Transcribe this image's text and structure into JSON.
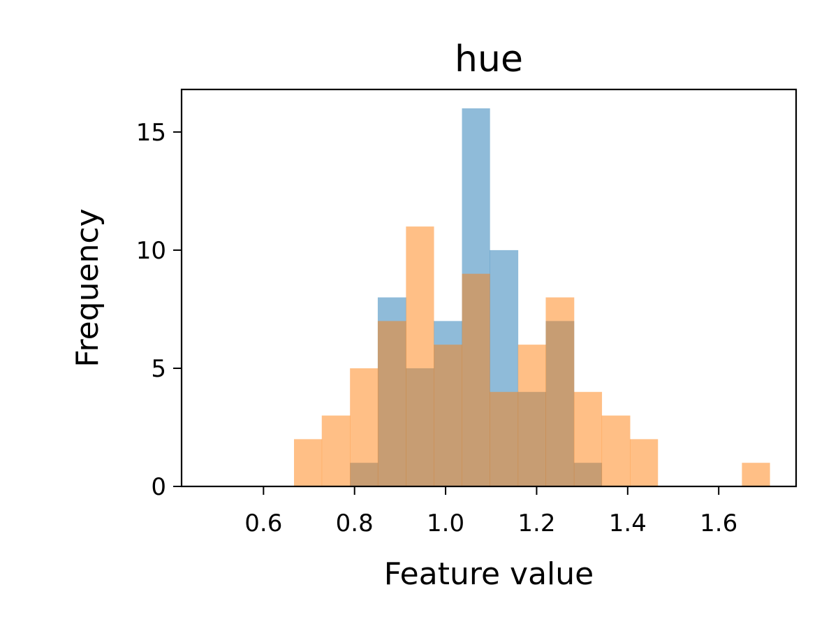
{
  "chart_data": {
    "type": "bar",
    "title": "hue",
    "xlabel": "Feature value",
    "ylabel": "Frequency",
    "xlim": [
      0.42,
      1.77
    ],
    "ylim": [
      0,
      16.8
    ],
    "xticks": [
      0.6,
      0.8,
      1.0,
      1.2,
      1.4,
      1.6
    ],
    "xtick_labels": [
      "0.6",
      "0.8",
      "1.0",
      "1.2",
      "1.4",
      "1.6"
    ],
    "yticks": [
      0,
      5,
      10,
      15
    ],
    "ytick_labels": [
      "0",
      "5",
      "10",
      "15"
    ],
    "grid": false,
    "legend": "none",
    "series": [
      {
        "color": "#1f77b4",
        "opacity": 0.5,
        "bins": [
          {
            "x0": 0.79,
            "x1": 0.851,
            "count": 1
          },
          {
            "x0": 0.851,
            "x1": 0.913,
            "count": 8
          },
          {
            "x0": 0.913,
            "x1": 0.974,
            "count": 5
          },
          {
            "x0": 0.974,
            "x1": 1.036,
            "count": 7
          },
          {
            "x0": 1.036,
            "x1": 1.097,
            "count": 16
          },
          {
            "x0": 1.097,
            "x1": 1.159,
            "count": 10
          },
          {
            "x0": 1.159,
            "x1": 1.22,
            "count": 4
          },
          {
            "x0": 1.22,
            "x1": 1.282,
            "count": 7
          },
          {
            "x0": 1.282,
            "x1": 1.343,
            "count": 1
          }
        ]
      },
      {
        "color": "#ff7f0e",
        "opacity": 0.5,
        "bins": [
          {
            "x0": 0.667,
            "x1": 0.728,
            "count": 2
          },
          {
            "x0": 0.728,
            "x1": 0.79,
            "count": 3
          },
          {
            "x0": 0.79,
            "x1": 0.851,
            "count": 5
          },
          {
            "x0": 0.851,
            "x1": 0.913,
            "count": 7
          },
          {
            "x0": 0.913,
            "x1": 0.974,
            "count": 11
          },
          {
            "x0": 0.974,
            "x1": 1.036,
            "count": 6
          },
          {
            "x0": 1.036,
            "x1": 1.097,
            "count": 9
          },
          {
            "x0": 1.097,
            "x1": 1.159,
            "count": 4
          },
          {
            "x0": 1.159,
            "x1": 1.22,
            "count": 6
          },
          {
            "x0": 1.22,
            "x1": 1.282,
            "count": 8
          },
          {
            "x0": 1.282,
            "x1": 1.343,
            "count": 4
          },
          {
            "x0": 1.343,
            "x1": 1.405,
            "count": 3
          },
          {
            "x0": 1.405,
            "x1": 1.466,
            "count": 2
          },
          {
            "x0": 1.651,
            "x1": 1.712,
            "count": 1
          }
        ]
      }
    ]
  }
}
